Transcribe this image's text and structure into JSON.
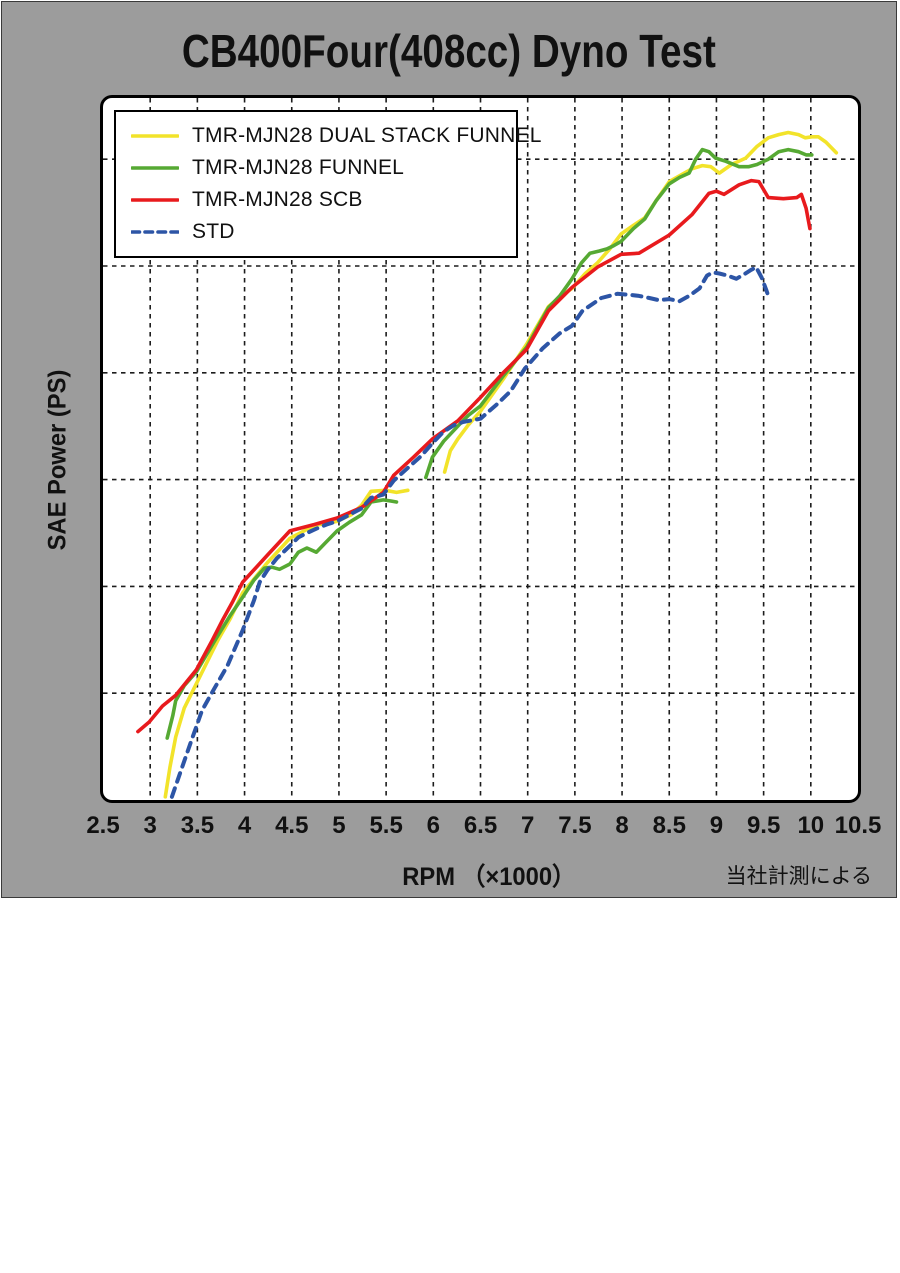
{
  "title": "CB400Four(408cc) Dyno Test",
  "chart_data": {
    "type": "line",
    "title": "CB400Four(408cc) Dyno Test",
    "xlabel": "RPM （×1000）",
    "ylabel": "SAE Power (PS)",
    "annotation": "当社計測による",
    "xlim": [
      2.5,
      10.5
    ],
    "x_ticks": [
      2.5,
      3,
      3.5,
      4,
      4.5,
      5,
      5.5,
      6,
      6.5,
      7,
      7.5,
      8,
      8.5,
      9,
      9.5,
      10,
      10.5
    ],
    "ylim": [
      0,
      6.6
    ],
    "y_axis_note": "y axis has no numeric labels; values given in horizontal-gridline divisions above baseline (6 dashed gridlines)",
    "grid": "dashed",
    "legend_position": "top-left",
    "series": [
      {
        "name": "TMR-MJN28 DUAL STACK FUNNEL",
        "color": "#f2e32a",
        "line_style": "solid",
        "segments": [
          [
            [
              3.16,
              0.03
            ],
            [
              3.21,
              0.31
            ],
            [
              3.27,
              0.59
            ],
            [
              3.36,
              0.86
            ],
            [
              3.49,
              1.09
            ],
            [
              3.72,
              1.5
            ],
            [
              3.85,
              1.7
            ],
            [
              3.98,
              1.94
            ],
            [
              4.24,
              2.22
            ],
            [
              4.48,
              2.45
            ],
            [
              4.74,
              2.57
            ],
            [
              4.98,
              2.61
            ],
            [
              5.13,
              2.67
            ],
            [
              5.24,
              2.76
            ],
            [
              5.34,
              2.89
            ],
            [
              5.49,
              2.9
            ],
            [
              5.61,
              2.88
            ],
            [
              5.73,
              2.9
            ]
          ],
          [
            [
              6.12,
              3.07
            ],
            [
              6.18,
              3.27
            ],
            [
              6.26,
              3.38
            ],
            [
              6.37,
              3.51
            ],
            [
              6.5,
              3.64
            ],
            [
              6.74,
              3.94
            ],
            [
              6.99,
              4.27
            ],
            [
              7.22,
              4.62
            ],
            [
              7.34,
              4.71
            ],
            [
              7.47,
              4.79
            ],
            [
              7.61,
              4.93
            ],
            [
              7.74,
              5.03
            ],
            [
              7.87,
              5.16
            ],
            [
              7.99,
              5.3
            ],
            [
              8.12,
              5.38
            ],
            [
              8.24,
              5.45
            ],
            [
              8.36,
              5.61
            ],
            [
              8.5,
              5.79
            ],
            [
              8.62,
              5.85
            ],
            [
              8.74,
              5.91
            ],
            [
              8.85,
              5.94
            ],
            [
              8.94,
              5.93
            ],
            [
              9.03,
              5.87
            ],
            [
              9.16,
              5.95
            ],
            [
              9.31,
              6.01
            ],
            [
              9.43,
              6.12
            ],
            [
              9.55,
              6.2
            ],
            [
              9.66,
              6.23
            ],
            [
              9.76,
              6.25
            ],
            [
              9.87,
              6.23
            ],
            [
              9.94,
              6.2
            ],
            [
              10.01,
              6.21
            ],
            [
              10.08,
              6.21
            ],
            [
              10.16,
              6.16
            ],
            [
              10.27,
              6.06
            ]
          ]
        ]
      },
      {
        "name": "TMR-MJN28 FUNNEL",
        "color": "#56a933",
        "line_style": "solid",
        "segments": [
          [
            [
              3.18,
              0.58
            ],
            [
              3.24,
              0.79
            ],
            [
              3.27,
              0.93
            ],
            [
              3.36,
              1.07
            ],
            [
              3.49,
              1.2
            ],
            [
              3.69,
              1.5
            ],
            [
              3.85,
              1.73
            ],
            [
              3.98,
              1.9
            ],
            [
              4.1,
              2.06
            ],
            [
              4.21,
              2.17
            ],
            [
              4.29,
              2.18
            ],
            [
              4.37,
              2.16
            ],
            [
              4.48,
              2.21
            ],
            [
              4.57,
              2.32
            ],
            [
              4.66,
              2.36
            ],
            [
              4.76,
              2.32
            ],
            [
              4.87,
              2.42
            ],
            [
              4.98,
              2.52
            ],
            [
              5.11,
              2.6
            ],
            [
              5.24,
              2.67
            ],
            [
              5.34,
              2.79
            ],
            [
              5.47,
              2.81
            ],
            [
              5.55,
              2.8
            ],
            [
              5.61,
              2.79
            ]
          ],
          [
            [
              5.92,
              3.02
            ],
            [
              5.99,
              3.21
            ],
            [
              6.11,
              3.36
            ],
            [
              6.26,
              3.5
            ],
            [
              6.37,
              3.6
            ],
            [
              6.5,
              3.69
            ],
            [
              6.74,
              3.97
            ],
            [
              6.99,
              4.24
            ],
            [
              7.22,
              4.61
            ],
            [
              7.34,
              4.72
            ],
            [
              7.47,
              4.88
            ],
            [
              7.57,
              5.03
            ],
            [
              7.66,
              5.12
            ],
            [
              7.76,
              5.14
            ],
            [
              7.84,
              5.16
            ],
            [
              7.91,
              5.19
            ],
            [
              7.99,
              5.23
            ],
            [
              8.12,
              5.35
            ],
            [
              8.24,
              5.44
            ],
            [
              8.36,
              5.61
            ],
            [
              8.5,
              5.77
            ],
            [
              8.61,
              5.83
            ],
            [
              8.71,
              5.87
            ],
            [
              8.78,
              6.0
            ],
            [
              8.85,
              6.09
            ],
            [
              8.92,
              6.07
            ],
            [
              8.99,
              6.01
            ],
            [
              9.1,
              5.98
            ],
            [
              9.24,
              5.93
            ],
            [
              9.34,
              5.93
            ],
            [
              9.43,
              5.95
            ],
            [
              9.55,
              6.0
            ],
            [
              9.66,
              6.07
            ],
            [
              9.76,
              6.09
            ],
            [
              9.87,
              6.07
            ],
            [
              9.95,
              6.04
            ],
            [
              10.01,
              6.04
            ]
          ]
        ]
      },
      {
        "name": "TMR-MJN28 SCB",
        "color": "#e81a1d",
        "line_style": "solid",
        "segments": [
          [
            [
              2.87,
              0.64
            ],
            [
              2.99,
              0.73
            ],
            [
              3.13,
              0.88
            ],
            [
              3.27,
              0.98
            ],
            [
              3.49,
              1.22
            ],
            [
              3.66,
              1.5
            ],
            [
              3.77,
              1.69
            ],
            [
              3.87,
              1.85
            ],
            [
              3.98,
              2.04
            ],
            [
              4.24,
              2.29
            ],
            [
              4.48,
              2.52
            ],
            [
              4.74,
              2.58
            ],
            [
              4.98,
              2.64
            ],
            [
              5.24,
              2.74
            ],
            [
              5.47,
              2.88
            ],
            [
              5.58,
              3.04
            ],
            [
              5.79,
              3.21
            ],
            [
              5.99,
              3.38
            ],
            [
              6.26,
              3.55
            ],
            [
              6.5,
              3.77
            ],
            [
              6.74,
              4.0
            ],
            [
              6.99,
              4.22
            ],
            [
              7.22,
              4.58
            ],
            [
              7.47,
              4.8
            ],
            [
              7.74,
              4.99
            ],
            [
              7.99,
              5.11
            ],
            [
              8.18,
              5.12
            ],
            [
              8.5,
              5.29
            ],
            [
              8.74,
              5.48
            ],
            [
              8.92,
              5.68
            ],
            [
              9.0,
              5.7
            ],
            [
              9.08,
              5.67
            ],
            [
              9.24,
              5.76
            ],
            [
              9.37,
              5.8
            ],
            [
              9.45,
              5.79
            ],
            [
              9.55,
              5.64
            ],
            [
              9.71,
              5.63
            ],
            [
              9.85,
              5.64
            ],
            [
              9.9,
              5.67
            ],
            [
              9.95,
              5.54
            ],
            [
              9.99,
              5.35
            ]
          ]
        ]
      },
      {
        "name": "STD",
        "color": "#2d55a6",
        "line_style": "dashed",
        "segments": [
          [
            [
              3.23,
              0.03
            ],
            [
              3.32,
              0.26
            ],
            [
              3.43,
              0.54
            ],
            [
              3.55,
              0.84
            ],
            [
              3.69,
              1.06
            ],
            [
              3.82,
              1.26
            ],
            [
              3.98,
              1.59
            ],
            [
              4.1,
              1.87
            ],
            [
              4.16,
              2.04
            ],
            [
              4.24,
              2.15
            ],
            [
              4.34,
              2.26
            ],
            [
              4.48,
              2.38
            ],
            [
              4.57,
              2.46
            ],
            [
              4.66,
              2.5
            ],
            [
              4.76,
              2.54
            ],
            [
              4.87,
              2.58
            ],
            [
              4.98,
              2.61
            ],
            [
              5.11,
              2.67
            ],
            [
              5.24,
              2.73
            ],
            [
              5.34,
              2.83
            ],
            [
              5.47,
              2.86
            ],
            [
              5.58,
              2.99
            ],
            [
              5.73,
              3.11
            ],
            [
              5.87,
              3.22
            ],
            [
              5.99,
              3.34
            ],
            [
              6.11,
              3.45
            ],
            [
              6.22,
              3.51
            ],
            [
              6.32,
              3.54
            ],
            [
              6.5,
              3.57
            ],
            [
              6.68,
              3.71
            ],
            [
              6.82,
              3.83
            ],
            [
              6.97,
              4.04
            ],
            [
              7.16,
              4.23
            ],
            [
              7.34,
              4.37
            ],
            [
              7.47,
              4.44
            ],
            [
              7.58,
              4.58
            ],
            [
              7.78,
              4.7
            ],
            [
              7.95,
              4.74
            ],
            [
              8.08,
              4.73
            ],
            [
              8.18,
              4.72
            ],
            [
              8.29,
              4.7
            ],
            [
              8.39,
              4.68
            ],
            [
              8.5,
              4.69
            ],
            [
              8.61,
              4.67
            ],
            [
              8.71,
              4.72
            ],
            [
              8.82,
              4.79
            ],
            [
              8.9,
              4.91
            ],
            [
              8.96,
              4.94
            ],
            [
              9.03,
              4.93
            ],
            [
              9.12,
              4.91
            ],
            [
              9.21,
              4.88
            ],
            [
              9.29,
              4.92
            ],
            [
              9.36,
              4.96
            ],
            [
              9.42,
              4.99
            ],
            [
              9.48,
              4.89
            ],
            [
              9.53,
              4.77
            ],
            [
              9.56,
              4.69
            ]
          ]
        ]
      }
    ]
  }
}
